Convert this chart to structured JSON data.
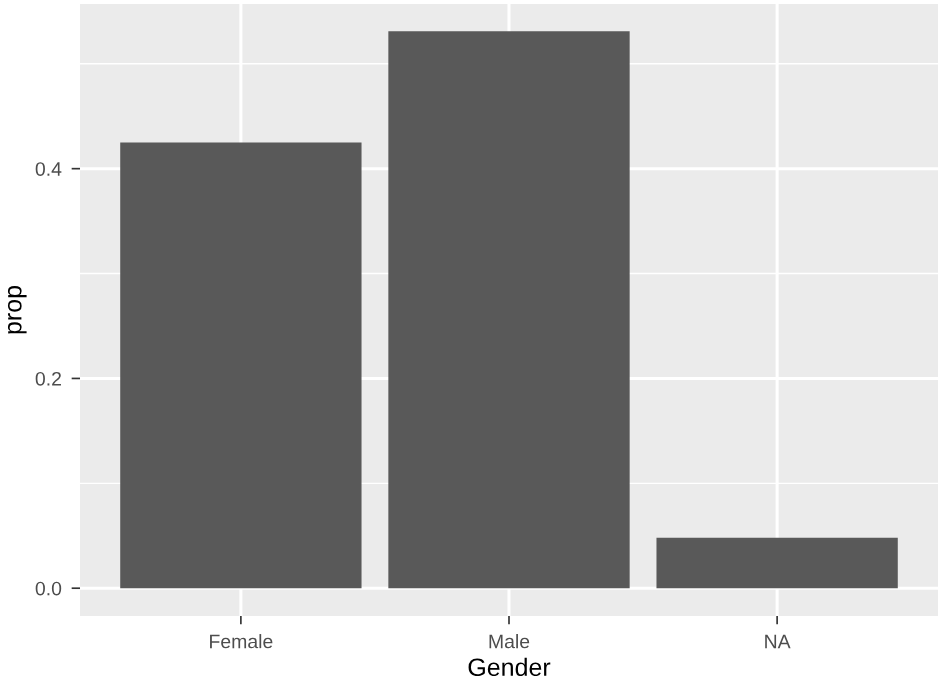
{
  "chart_data": {
    "type": "bar",
    "xlabel": "Gender",
    "ylabel": "prop",
    "categories": [
      "Female",
      "Male",
      "NA"
    ],
    "values": [
      0.425,
      0.531,
      0.048
    ],
    "color": "#595959",
    "ylim": [
      -0.0265,
      0.557
    ],
    "yticks": [
      {
        "value": 0,
        "label": "0.0"
      },
      {
        "value": 0.2,
        "label": "0.2"
      },
      {
        "value": 0.4,
        "label": "0.4"
      }
    ],
    "grid": true,
    "legend": false
  }
}
